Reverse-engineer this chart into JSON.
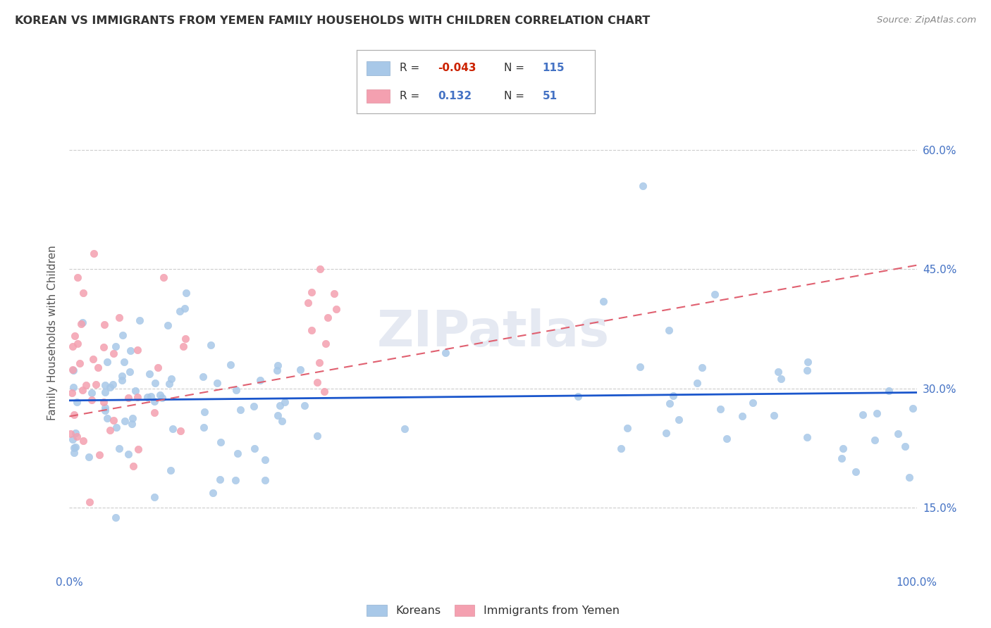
{
  "title": "KOREAN VS IMMIGRANTS FROM YEMEN FAMILY HOUSEHOLDS WITH CHILDREN CORRELATION CHART",
  "source": "Source: ZipAtlas.com",
  "ylabel": "Family Households with Children",
  "watermark": "ZIPatlas",
  "blue_color": "#a8c8e8",
  "pink_color": "#f4a0b0",
  "blue_line_color": "#1a56cc",
  "pink_line_color": "#e06070",
  "title_color": "#333333",
  "axis_color": "#4472c4",
  "background_color": "#ffffff",
  "grid_color": "#cccccc",
  "legend_r1": "-0.043",
  "legend_n1": "115",
  "legend_r2": "0.132",
  "legend_n2": "51",
  "xlim": [
    0.0,
    1.0
  ],
  "ylim": [
    0.07,
    0.67
  ],
  "ytick_vals": [
    0.15,
    0.3,
    0.45,
    0.6
  ],
  "ytick_labels": [
    "15.0%",
    "30.0%",
    "45.0%",
    "60.0%"
  ],
  "xtick_vals": [
    0.0,
    1.0
  ],
  "xtick_labels": [
    "0.0%",
    "100.0%"
  ]
}
